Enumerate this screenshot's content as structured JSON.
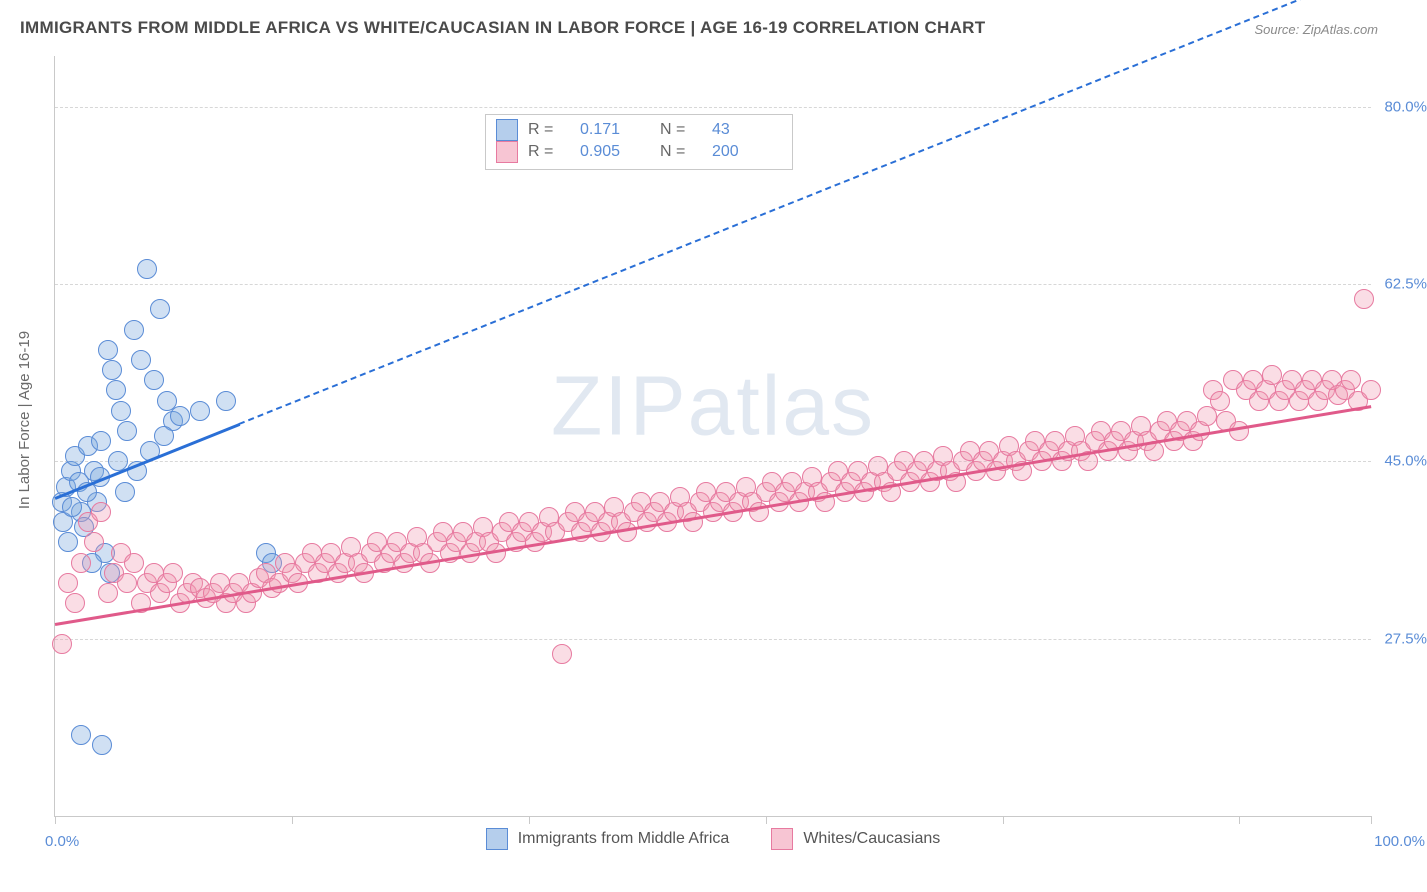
{
  "title": "IMMIGRANTS FROM MIDDLE AFRICA VS WHITE/CAUCASIAN IN LABOR FORCE | AGE 16-19 CORRELATION CHART",
  "source": "Source: ZipAtlas.com",
  "watermark": "ZIPatlas",
  "y_axis_title": "In Labor Force | Age 16-19",
  "chart": {
    "type": "scatter-correlation",
    "xlim": [
      0,
      100
    ],
    "ylim": [
      10,
      85
    ],
    "y_ticks": [
      27.5,
      45.0,
      62.5,
      80.0
    ],
    "y_tick_labels": [
      "27.5%",
      "45.0%",
      "62.5%",
      "80.0%"
    ],
    "x_ticks": [
      0,
      18,
      36,
      54,
      72,
      90,
      100
    ],
    "x_end_labels": [
      "0.0%",
      "100.0%"
    ],
    "grid_color": "#d7d7d7",
    "bg_color": "#ffffff",
    "point_radius": 9,
    "series": [
      {
        "name": "Immigrants from Middle Africa",
        "color_fill": "rgba(120,165,220,0.35)",
        "color_stroke": "#5a8cd6",
        "R": "0.171",
        "N": "43",
        "trend": {
          "x1": 0,
          "y1": 41.5,
          "x2": 14,
          "y2": 48.8,
          "dash_to_x": 100,
          "dash_to_y": 93.5
        },
        "points": [
          [
            0.5,
            41
          ],
          [
            0.8,
            42.5
          ],
          [
            1.2,
            44
          ],
          [
            1.5,
            45.5
          ],
          [
            1.8,
            43
          ],
          [
            2.0,
            40
          ],
          [
            2.2,
            38.5
          ],
          [
            2.5,
            46.5
          ],
          [
            3.0,
            44
          ],
          [
            3.2,
            41
          ],
          [
            3.5,
            47
          ],
          [
            4.0,
            56
          ],
          [
            4.3,
            54
          ],
          [
            4.6,
            52
          ],
          [
            5.0,
            50
          ],
          [
            5.5,
            48
          ],
          [
            6.0,
            58
          ],
          [
            6.5,
            55
          ],
          [
            7.0,
            64
          ],
          [
            7.5,
            53
          ],
          [
            8.0,
            60
          ],
          [
            8.5,
            51
          ],
          [
            9.0,
            49
          ],
          [
            3.8,
            36
          ],
          [
            4.2,
            34
          ],
          [
            2.8,
            35
          ],
          [
            1.0,
            37
          ],
          [
            0.6,
            39
          ],
          [
            1.3,
            40.5
          ],
          [
            2.4,
            42
          ],
          [
            3.4,
            43.5
          ],
          [
            4.8,
            45
          ],
          [
            5.3,
            42
          ],
          [
            6.2,
            44
          ],
          [
            7.2,
            46
          ],
          [
            8.3,
            47.5
          ],
          [
            9.5,
            49.5
          ],
          [
            11.0,
            50
          ],
          [
            13.0,
            51
          ],
          [
            16.0,
            36
          ],
          [
            16.5,
            35
          ],
          [
            2.0,
            18
          ],
          [
            3.6,
            17
          ]
        ]
      },
      {
        "name": "Whites/Caucasians",
        "color_fill": "rgba(240,150,175,0.32)",
        "color_stroke": "#e77aa0",
        "R": "0.905",
        "N": "200",
        "trend": {
          "x1": 0,
          "y1": 29.0,
          "x2": 100,
          "y2": 50.5
        },
        "points": [
          [
            0.5,
            27
          ],
          [
            1,
            33
          ],
          [
            1.5,
            31
          ],
          [
            2,
            35
          ],
          [
            2.5,
            39
          ],
          [
            3,
            37
          ],
          [
            3.5,
            40
          ],
          [
            4,
            32
          ],
          [
            4.5,
            34
          ],
          [
            5,
            36
          ],
          [
            5.5,
            33
          ],
          [
            6,
            35
          ],
          [
            6.5,
            31
          ],
          [
            7,
            33
          ],
          [
            7.5,
            34
          ],
          [
            8,
            32
          ],
          [
            8.5,
            33
          ],
          [
            9,
            34
          ],
          [
            9.5,
            31
          ],
          [
            10,
            32
          ],
          [
            10.5,
            33
          ],
          [
            11,
            32.5
          ],
          [
            11.5,
            31.5
          ],
          [
            12,
            32
          ],
          [
            12.5,
            33
          ],
          [
            13,
            31
          ],
          [
            13.5,
            32
          ],
          [
            14,
            33
          ],
          [
            14.5,
            31
          ],
          [
            15,
            32
          ],
          [
            15.5,
            33.5
          ],
          [
            16,
            34
          ],
          [
            16.5,
            32.5
          ],
          [
            17,
            33
          ],
          [
            17.5,
            35
          ],
          [
            18,
            34
          ],
          [
            18.5,
            33
          ],
          [
            19,
            35
          ],
          [
            19.5,
            36
          ],
          [
            20,
            34
          ],
          [
            20.5,
            35
          ],
          [
            21,
            36
          ],
          [
            21.5,
            34
          ],
          [
            22,
            35
          ],
          [
            22.5,
            36.5
          ],
          [
            23,
            35
          ],
          [
            23.5,
            34
          ],
          [
            24,
            36
          ],
          [
            24.5,
            37
          ],
          [
            25,
            35
          ],
          [
            25.5,
            36
          ],
          [
            26,
            37
          ],
          [
            26.5,
            35
          ],
          [
            27,
            36
          ],
          [
            27.5,
            37.5
          ],
          [
            28,
            36
          ],
          [
            28.5,
            35
          ],
          [
            29,
            37
          ],
          [
            29.5,
            38
          ],
          [
            30,
            36
          ],
          [
            30.5,
            37
          ],
          [
            31,
            38
          ],
          [
            31.5,
            36
          ],
          [
            32,
            37
          ],
          [
            32.5,
            38.5
          ],
          [
            33,
            37
          ],
          [
            33.5,
            36
          ],
          [
            34,
            38
          ],
          [
            34.5,
            39
          ],
          [
            35,
            37
          ],
          [
            35.5,
            38
          ],
          [
            36,
            39
          ],
          [
            36.5,
            37
          ],
          [
            37,
            38
          ],
          [
            37.5,
            39.5
          ],
          [
            38,
            38
          ],
          [
            38.5,
            26
          ],
          [
            39,
            39
          ],
          [
            39.5,
            40
          ],
          [
            40,
            38
          ],
          [
            40.5,
            39
          ],
          [
            41,
            40
          ],
          [
            41.5,
            38
          ],
          [
            42,
            39
          ],
          [
            42.5,
            40.5
          ],
          [
            43,
            39
          ],
          [
            43.5,
            38
          ],
          [
            44,
            40
          ],
          [
            44.5,
            41
          ],
          [
            45,
            39
          ],
          [
            45.5,
            40
          ],
          [
            46,
            41
          ],
          [
            46.5,
            39
          ],
          [
            47,
            40
          ],
          [
            47.5,
            41.5
          ],
          [
            48,
            40
          ],
          [
            48.5,
            39
          ],
          [
            49,
            41
          ],
          [
            49.5,
            42
          ],
          [
            50,
            40
          ],
          [
            50.5,
            41
          ],
          [
            51,
            42
          ],
          [
            51.5,
            40
          ],
          [
            52,
            41
          ],
          [
            52.5,
            42.5
          ],
          [
            53,
            41
          ],
          [
            53.5,
            40
          ],
          [
            54,
            42
          ],
          [
            54.5,
            43
          ],
          [
            55,
            41
          ],
          [
            55.5,
            42
          ],
          [
            56,
            43
          ],
          [
            56.5,
            41
          ],
          [
            57,
            42
          ],
          [
            57.5,
            43.5
          ],
          [
            58,
            42
          ],
          [
            58.5,
            41
          ],
          [
            59,
            43
          ],
          [
            59.5,
            44
          ],
          [
            60,
            42
          ],
          [
            60.5,
            43
          ],
          [
            61,
            44
          ],
          [
            61.5,
            42
          ],
          [
            62,
            43
          ],
          [
            62.5,
            44.5
          ],
          [
            63,
            43
          ],
          [
            63.5,
            42
          ],
          [
            64,
            44
          ],
          [
            64.5,
            45
          ],
          [
            65,
            43
          ],
          [
            65.5,
            44
          ],
          [
            66,
            45
          ],
          [
            66.5,
            43
          ],
          [
            67,
            44
          ],
          [
            67.5,
            45.5
          ],
          [
            68,
            44
          ],
          [
            68.5,
            43
          ],
          [
            69,
            45
          ],
          [
            69.5,
            46
          ],
          [
            70,
            44
          ],
          [
            70.5,
            45
          ],
          [
            71,
            46
          ],
          [
            71.5,
            44
          ],
          [
            72,
            45
          ],
          [
            72.5,
            46.5
          ],
          [
            73,
            45
          ],
          [
            73.5,
            44
          ],
          [
            74,
            46
          ],
          [
            74.5,
            47
          ],
          [
            75,
            45
          ],
          [
            75.5,
            46
          ],
          [
            76,
            47
          ],
          [
            76.5,
            45
          ],
          [
            77,
            46
          ],
          [
            77.5,
            47.5
          ],
          [
            78,
            46
          ],
          [
            78.5,
            45
          ],
          [
            79,
            47
          ],
          [
            79.5,
            48
          ],
          [
            80,
            46
          ],
          [
            80.5,
            47
          ],
          [
            81,
            48
          ],
          [
            81.5,
            46
          ],
          [
            82,
            47
          ],
          [
            82.5,
            48.5
          ],
          [
            83,
            47
          ],
          [
            83.5,
            46
          ],
          [
            84,
            48
          ],
          [
            84.5,
            49
          ],
          [
            85,
            47
          ],
          [
            85.5,
            48
          ],
          [
            86,
            49
          ],
          [
            86.5,
            47
          ],
          [
            87,
            48
          ],
          [
            87.5,
            49.5
          ],
          [
            88,
            52
          ],
          [
            88.5,
            51
          ],
          [
            89,
            49
          ],
          [
            89.5,
            53
          ],
          [
            90,
            48
          ],
          [
            90.5,
            52
          ],
          [
            91,
            53
          ],
          [
            91.5,
            51
          ],
          [
            92,
            52
          ],
          [
            92.5,
            53.5
          ],
          [
            93,
            51
          ],
          [
            93.5,
            52
          ],
          [
            94,
            53
          ],
          [
            94.5,
            51
          ],
          [
            95,
            52
          ],
          [
            95.5,
            53
          ],
          [
            96,
            51
          ],
          [
            96.5,
            52
          ],
          [
            97,
            53
          ],
          [
            97.5,
            51.5
          ],
          [
            98,
            52
          ],
          [
            98.5,
            53
          ],
          [
            99,
            51
          ],
          [
            99.5,
            61
          ],
          [
            100,
            52
          ]
        ]
      }
    ]
  },
  "legend_bottom": [
    {
      "swatch": "blue",
      "label": "Immigrants from Middle Africa"
    },
    {
      "swatch": "pink",
      "label": "Whites/Caucasians"
    }
  ]
}
